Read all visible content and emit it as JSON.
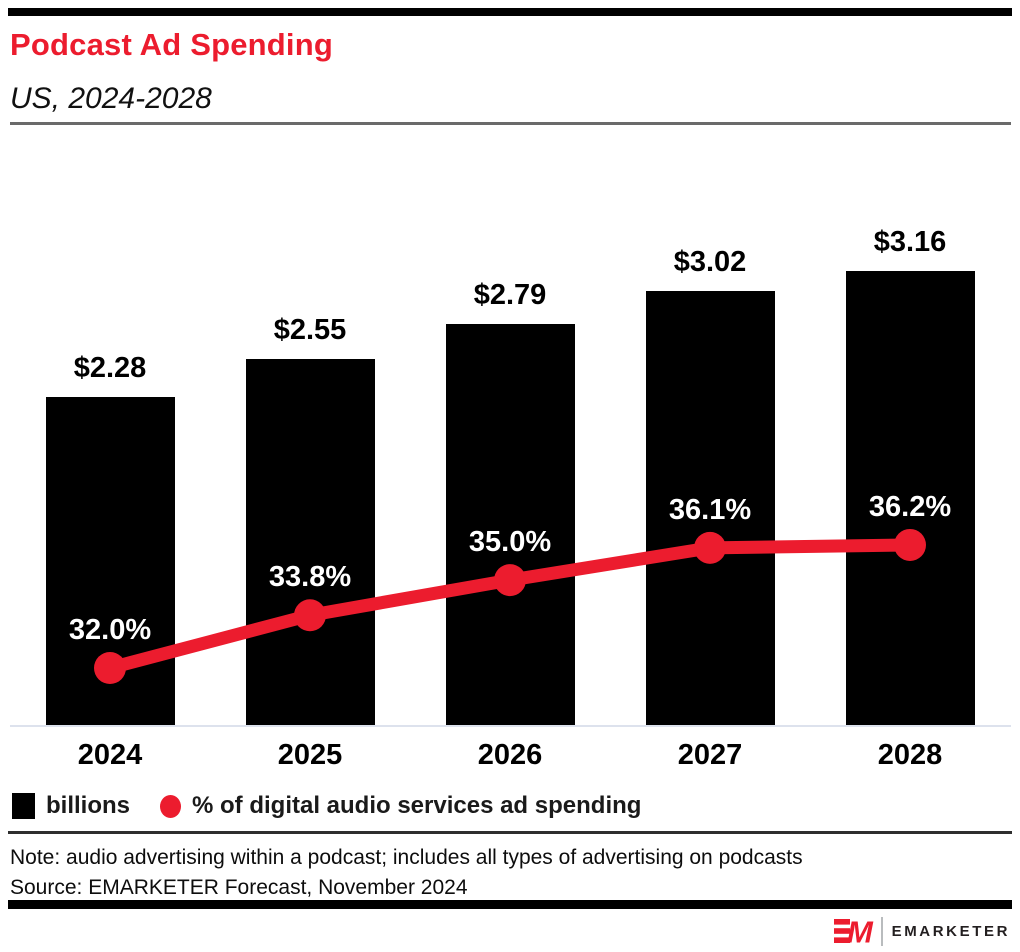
{
  "header": {
    "title": "Podcast Ad Spending",
    "subtitle": "US, 2024-2028"
  },
  "chart_data": {
    "type": "bar",
    "subtype": "combo-bar-line",
    "categories": [
      "2024",
      "2025",
      "2026",
      "2027",
      "2028"
    ],
    "series": [
      {
        "name": "billions",
        "type": "bar",
        "values": [
          2.28,
          2.55,
          2.79,
          3.02,
          3.16
        ],
        "labels": [
          "$2.28",
          "$2.55",
          "$2.79",
          "$3.02",
          "$3.16"
        ],
        "color": "#000000"
      },
      {
        "name": "% of digital audio services ad spending",
        "type": "line",
        "values": [
          32.0,
          33.8,
          35.0,
          36.1,
          36.2
        ],
        "labels": [
          "32.0%",
          "33.8%",
          "35.0%",
          "36.1%",
          "36.2%"
        ],
        "color": "#EC1C2E"
      }
    ],
    "title": "Podcast Ad Spending",
    "subtitle": "US, 2024-2028",
    "xlabel": "",
    "ylabel": "",
    "grid": false,
    "legend_position": "bottom"
  },
  "legend": {
    "items": [
      {
        "swatch": "black-square",
        "label": "billions"
      },
      {
        "swatch": "red-dot",
        "label": "% of digital audio services ad spending"
      }
    ]
  },
  "footnotes": {
    "note": "Note: audio advertising within a podcast; includes all types of advertising on podcasts",
    "source": "Source: EMARKETER Forecast, November 2024"
  },
  "branding": {
    "logo_text": "EM",
    "wordmark": "EMARKETER"
  },
  "colors": {
    "accent_red": "#EC1C2E",
    "bar_black": "#000000",
    "axis_line": "#dde2ed",
    "header_rule_gray": "#6a6a6a",
    "note_rule_dark": "#2e2e2e",
    "pct_label_white": "#ffffff"
  }
}
